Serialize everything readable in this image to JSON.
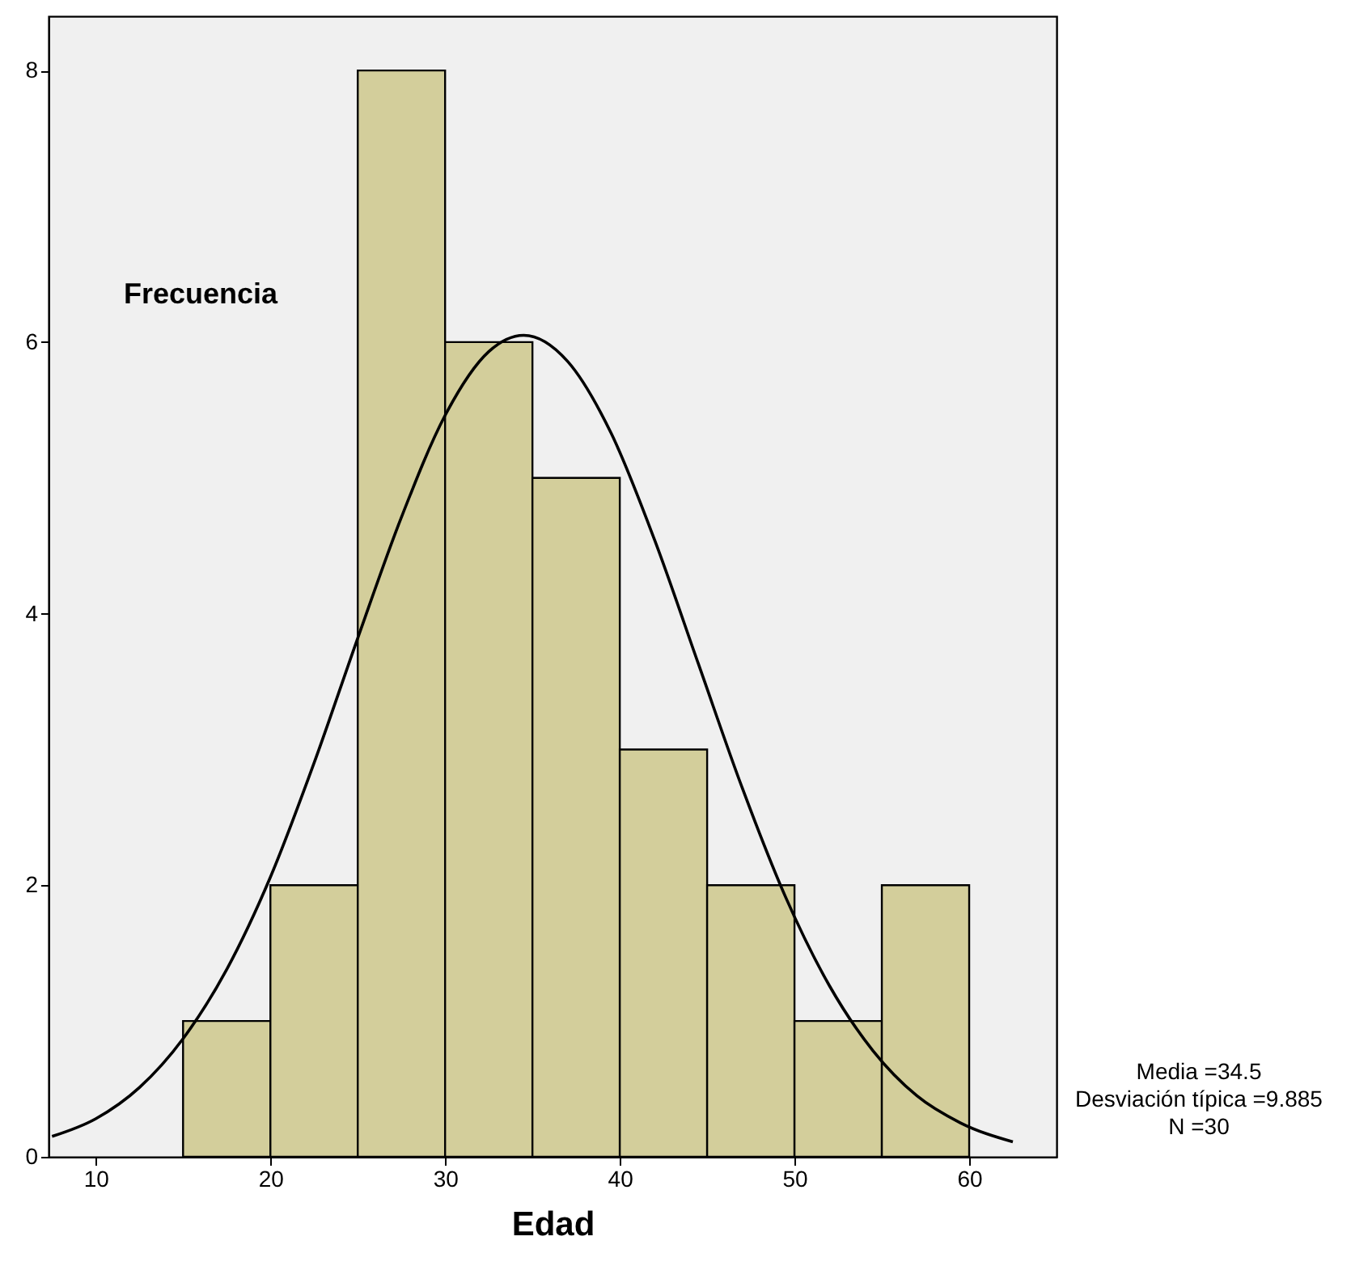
{
  "chart_data": {
    "type": "histogram",
    "xlabel": "Edad",
    "ylabel": "Frecuencia",
    "bins": [
      15,
      20,
      25,
      30,
      35,
      40,
      45,
      50,
      55,
      60
    ],
    "values": [
      1,
      2,
      8,
      6,
      5,
      3,
      2,
      1,
      2
    ],
    "color": "#d3ce9b",
    "series": [
      {
        "type": "line",
        "color": "#000000",
        "x": [
          7.5,
          10,
          12.5,
          15,
          17.5,
          20,
          22.5,
          25,
          27.5,
          30,
          32.5,
          34.5,
          37,
          39.5,
          42,
          44.5,
          47,
          49.5,
          52,
          54.5,
          57,
          59.5,
          62.5
        ],
        "values": [
          0.15,
          0.28,
          0.51,
          0.87,
          1.38,
          2.06,
          2.9,
          3.82,
          4.71,
          5.46,
          5.93,
          6.05,
          5.86,
          5.33,
          4.54,
          3.63,
          2.72,
          1.91,
          1.26,
          0.78,
          0.45,
          0.25,
          0.11
        ]
      }
    ],
    "xlim": [
      7.3,
      65
    ],
    "xticks": [
      10,
      20,
      30,
      40,
      50,
      60
    ],
    "ylim": [
      0,
      8.4
    ],
    "yticks": [
      0,
      2,
      4,
      6,
      8
    ],
    "grid": false,
    "annotations": [
      "Media =34.5",
      "Desviación típica =9.885",
      "N =30"
    ]
  }
}
